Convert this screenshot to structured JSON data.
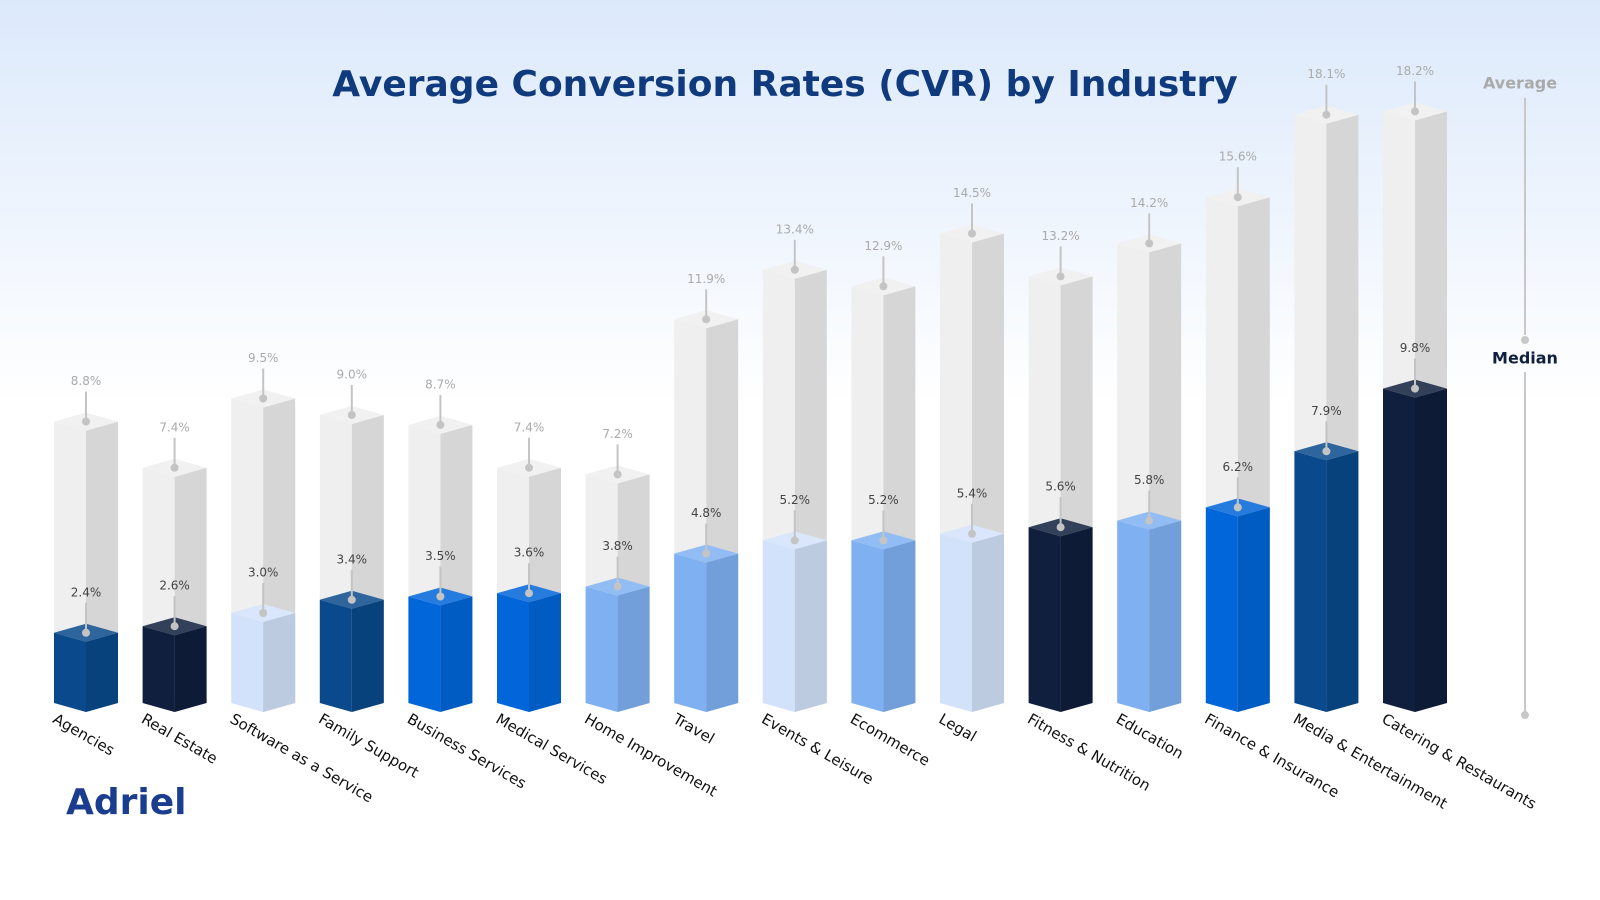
{
  "chart_data": {
    "type": "prism-bar",
    "title": "Average Conversion Rates (CVR) by Industry",
    "logo": "Adriel",
    "categories": [
      "Agencies",
      "Real Estate",
      "Software as a Service",
      "Family Support",
      "Business Services",
      "Medical Services",
      "Home Improvement",
      "Travel",
      "Events & Leisure",
      "Ecommerce",
      "Legal",
      "Fitness & Nutrition",
      "Education",
      "Finance & Insurance",
      "Media & Entertainment",
      "Catering & Restaurants"
    ],
    "series": [
      {
        "name": "Average",
        "color": "#efefef",
        "values": [
          8.8,
          7.4,
          9.5,
          9.0,
          8.7,
          7.4,
          7.2,
          11.9,
          13.4,
          12.9,
          14.5,
          13.2,
          14.2,
          15.6,
          18.1,
          18.2
        ],
        "value_labels": [
          "8.8%",
          "7.4%",
          "9.5%",
          "9.0%",
          "8.7%",
          "7.4%",
          "7.2%",
          "11.9%",
          "13.4%",
          "12.9%",
          "14.5%",
          "13.2%",
          "14.2%",
          "15.6%",
          "18.1%",
          "18.2%"
        ]
      },
      {
        "name": "Median",
        "colors": [
          "#0a4a8c",
          "#0f1f3d",
          "#d3e2fb",
          "#0a4a8c",
          "#0066d9",
          "#0066d9",
          "#7fb1f2",
          "#7fb1f2",
          "#d3e2fb",
          "#7fb1f2",
          "#d3e2fb",
          "#0f1f3d",
          "#7fb1f2",
          "#0066d9",
          "#0a4a8c",
          "#0f1f3d"
        ],
        "values": [
          2.4,
          2.6,
          3.0,
          3.4,
          3.5,
          3.6,
          3.8,
          4.8,
          5.2,
          5.2,
          5.4,
          5.6,
          5.8,
          6.2,
          7.9,
          9.8
        ],
        "value_labels": [
          "2.4%",
          "2.6%",
          "3.0%",
          "3.4%",
          "3.5%",
          "3.6%",
          "3.8%",
          "4.8%",
          "5.2%",
          "5.2%",
          "5.4%",
          "5.6%",
          "5.8%",
          "6.2%",
          "7.9%",
          "9.8%"
        ]
      }
    ]
  }
}
